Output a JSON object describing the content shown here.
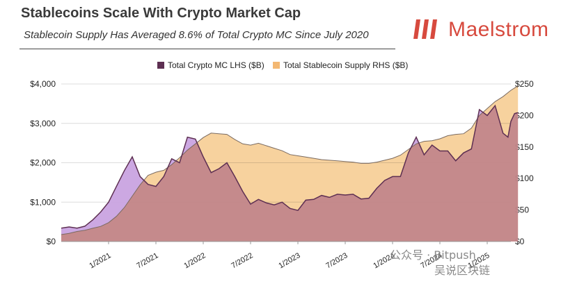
{
  "header": {
    "title": "Stablecoins Scale With Crypto Market Cap",
    "subtitle": "Stablecoin Supply Has Averaged 8.6% of Total Crypto MC Since July 2020"
  },
  "logo": {
    "text": "Maelstrom",
    "color": "#d74a3e"
  },
  "watermark": {
    "line1": "公众号 · Bitpush",
    "line2": "吴说区块链"
  },
  "chart_data": {
    "type": "area",
    "title": "",
    "legend": {
      "position": "top",
      "entries": [
        "Total Crypto MC LHS ($B)",
        "Total Stablecoin Supply RHS ($B)"
      ]
    },
    "x_tick_labels": [
      "1/2021",
      "7/2021",
      "1/2022",
      "7/2022",
      "1/2023",
      "7/2023",
      "1/2024",
      "7/2024",
      "1/2025"
    ],
    "left_axis": {
      "label_format": "$",
      "ylim": [
        0,
        4000
      ],
      "ticks": [
        "$0",
        "$1,000",
        "$2,000",
        "$3,000",
        "$4,000"
      ],
      "tick_values": [
        0,
        1000,
        2000,
        3000,
        4000
      ]
    },
    "right_axis": {
      "label_format": "$",
      "ylim": [
        0,
        250
      ],
      "ticks": [
        "$0",
        "$50",
        "$100",
        "$150",
        "$200",
        "$250"
      ],
      "tick_values": [
        0,
        50,
        100,
        150,
        200,
        250
      ]
    },
    "x_range": [
      "2020-07",
      "2025-04"
    ],
    "grid": "horizontal",
    "series": [
      {
        "name": "Total Crypto MC LHS ($B)",
        "axis": "left",
        "color": "#c9a3e0",
        "line_color": "#5d2f52",
        "points": [
          [
            "2020-07",
            340
          ],
          [
            "2020-08",
            370
          ],
          [
            "2020-09",
            340
          ],
          [
            "2020-10",
            390
          ],
          [
            "2020-11",
            550
          ],
          [
            "2020-12",
            750
          ],
          [
            "2021-01",
            1000
          ],
          [
            "2021-02",
            1400
          ],
          [
            "2021-03",
            1800
          ],
          [
            "2021-04",
            2150
          ],
          [
            "2021-05",
            1650
          ],
          [
            "2021-06",
            1450
          ],
          [
            "2021-07",
            1400
          ],
          [
            "2021-08",
            1650
          ],
          [
            "2021-09",
            2100
          ],
          [
            "2021-10",
            2000
          ],
          [
            "2021-11",
            2650
          ],
          [
            "2021-12",
            2600
          ],
          [
            "2022-01",
            2150
          ],
          [
            "2022-02",
            1750
          ],
          [
            "2022-03",
            1850
          ],
          [
            "2022-04",
            2000
          ],
          [
            "2022-05",
            1650
          ],
          [
            "2022-06",
            1270
          ],
          [
            "2022-07",
            950
          ],
          [
            "2022-08",
            1070
          ],
          [
            "2022-09",
            980
          ],
          [
            "2022-10",
            930
          ],
          [
            "2022-11",
            1000
          ],
          [
            "2022-12",
            840
          ],
          [
            "2023-01",
            790
          ],
          [
            "2023-02",
            1050
          ],
          [
            "2023-03",
            1070
          ],
          [
            "2023-04",
            1170
          ],
          [
            "2023-05",
            1120
          ],
          [
            "2023-06",
            1200
          ],
          [
            "2023-07",
            1180
          ],
          [
            "2023-08",
            1200
          ],
          [
            "2023-09",
            1080
          ],
          [
            "2023-10",
            1100
          ],
          [
            "2023-11",
            1350
          ],
          [
            "2023-12",
            1550
          ],
          [
            "2024-01",
            1650
          ],
          [
            "2024-02",
            1650
          ],
          [
            "2024-03",
            2250
          ],
          [
            "2024-04",
            2650
          ],
          [
            "2024-05",
            2200
          ],
          [
            "2024-06",
            2450
          ],
          [
            "2024-07",
            2300
          ],
          [
            "2024-08",
            2300
          ],
          [
            "2024-09",
            2050
          ],
          [
            "2024-10",
            2250
          ],
          [
            "2024-11",
            2350
          ],
          [
            "2024-12",
            3350
          ],
          [
            "2025-01",
            3200
          ],
          [
            "2025-02",
            3450
          ],
          [
            "2025-03",
            2750
          ],
          [
            "2025-03-20",
            2650
          ],
          [
            "2025-04",
            3050
          ],
          [
            "2025-04-15",
            3250
          ],
          [
            "2025-04-28",
            3270
          ]
        ]
      },
      {
        "name": "Total Stablecoin Supply RHS ($B)",
        "axis": "right",
        "color": "#f6cd94",
        "line_color": "#7a6a60",
        "points": [
          [
            "2020-07",
            11
          ],
          [
            "2020-08",
            13
          ],
          [
            "2020-09",
            16
          ],
          [
            "2020-10",
            18
          ],
          [
            "2020-11",
            21
          ],
          [
            "2020-12",
            24
          ],
          [
            "2021-01",
            30
          ],
          [
            "2021-02",
            40
          ],
          [
            "2021-03",
            54
          ],
          [
            "2021-04",
            72
          ],
          [
            "2021-05",
            90
          ],
          [
            "2021-06",
            105
          ],
          [
            "2021-07",
            110
          ],
          [
            "2021-08",
            113
          ],
          [
            "2021-09",
            122
          ],
          [
            "2021-10",
            133
          ],
          [
            "2021-11",
            145
          ],
          [
            "2021-12",
            155
          ],
          [
            "2022-01",
            165
          ],
          [
            "2022-02",
            172
          ],
          [
            "2022-03",
            171
          ],
          [
            "2022-04",
            170
          ],
          [
            "2022-05",
            162
          ],
          [
            "2022-06",
            155
          ],
          [
            "2022-07",
            153
          ],
          [
            "2022-08",
            156
          ],
          [
            "2022-09",
            152
          ],
          [
            "2022-10",
            148
          ],
          [
            "2022-11",
            144
          ],
          [
            "2022-12",
            138
          ],
          [
            "2023-01",
            136
          ],
          [
            "2023-02",
            134
          ],
          [
            "2023-03",
            132
          ],
          [
            "2023-04",
            130
          ],
          [
            "2023-05",
            129
          ],
          [
            "2023-06",
            128
          ],
          [
            "2023-07",
            127
          ],
          [
            "2023-08",
            126
          ],
          [
            "2023-09",
            124
          ],
          [
            "2023-10",
            124
          ],
          [
            "2023-11",
            126
          ],
          [
            "2023-12",
            129
          ],
          [
            "2024-01",
            132
          ],
          [
            "2024-02",
            137
          ],
          [
            "2024-03",
            146
          ],
          [
            "2024-04",
            155
          ],
          [
            "2024-05",
            159
          ],
          [
            "2024-06",
            160
          ],
          [
            "2024-07",
            163
          ],
          [
            "2024-08",
            168
          ],
          [
            "2024-09",
            170
          ],
          [
            "2024-10",
            171
          ],
          [
            "2024-11",
            180
          ],
          [
            "2024-12",
            200
          ],
          [
            "2025-01",
            211
          ],
          [
            "2025-02",
            222
          ],
          [
            "2025-03",
            230
          ],
          [
            "2025-04",
            240
          ],
          [
            "2025-04-28",
            247
          ]
        ]
      }
    ]
  }
}
